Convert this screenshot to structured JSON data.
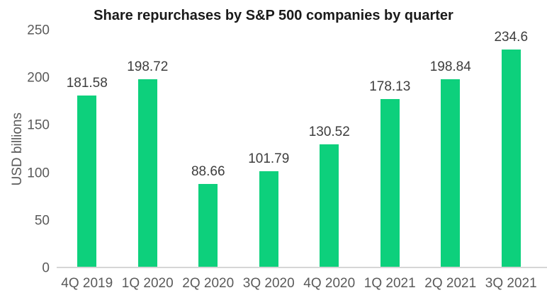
{
  "chart_data": {
    "type": "bar",
    "title": "Share repurchases by S&P 500 companies by quarter",
    "ylabel": "USD billions",
    "xlabel": "",
    "categories": [
      "4Q 2019",
      "1Q 2020",
      "2Q 2020",
      "3Q 2020",
      "4Q 2020",
      "1Q 2021",
      "2Q 2021",
      "3Q 2021"
    ],
    "values": [
      181.58,
      198.72,
      88.66,
      101.79,
      130.52,
      178.13,
      198.84,
      234.6
    ],
    "ylim": [
      0,
      250
    ],
    "yticks": [
      "0",
      "50",
      "100",
      "150",
      "200",
      "250"
    ],
    "grid": false,
    "legend": "none",
    "bar_color": "#0dd07c"
  },
  "colors": {
    "background": "#ffffff",
    "bar": "#0dd07c",
    "title_text": "#1a1a1a",
    "value_label_text": "#3d3d3d",
    "axis_label_text": "#5a5a5a",
    "baseline": "#d6d6d6"
  }
}
